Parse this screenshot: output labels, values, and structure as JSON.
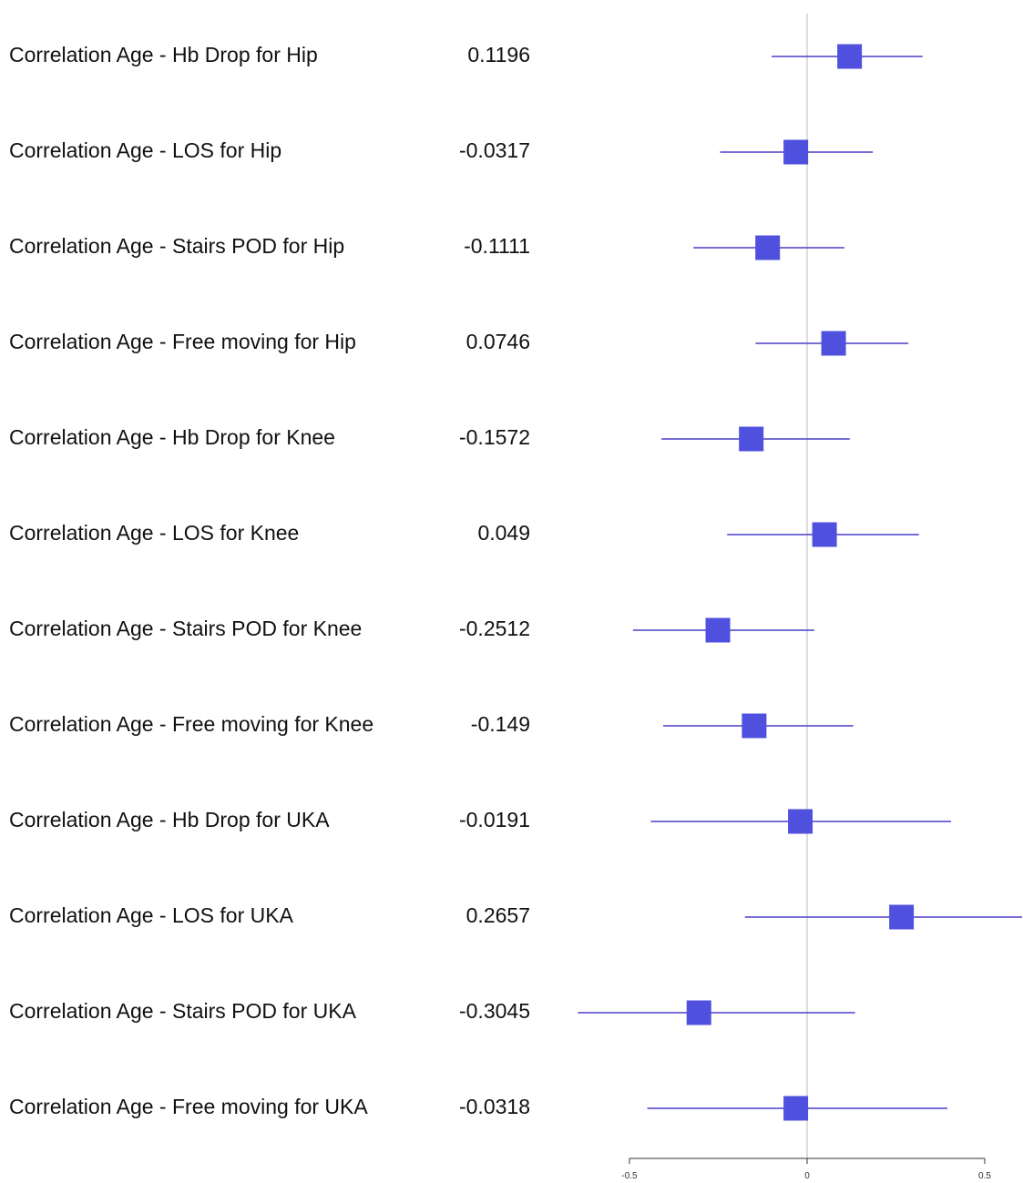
{
  "chart_data": {
    "type": "forest",
    "title": "",
    "xlabel": "",
    "ylabel": "",
    "xlim": [
      -0.5,
      0.5
    ],
    "reference_line": 0,
    "x_ticks": [
      -0.5,
      0,
      0.5
    ],
    "x_tick_labels": [
      "-0.5",
      "0",
      "0.5"
    ],
    "marker_color": "#5050DF",
    "ci_color": "#4A3FC8",
    "reference_color": "#C8C8C8",
    "rows": [
      {
        "label": "Correlation Age - Hb Drop for Hip",
        "value_text": "0.1196",
        "estimate": 0.1196,
        "ci_low": -0.1,
        "ci_high": 0.325
      },
      {
        "label": "Correlation Age - LOS for Hip",
        "value_text": "-0.0317",
        "estimate": -0.0317,
        "ci_low": -0.245,
        "ci_high": 0.185
      },
      {
        "label": "Correlation Age - Stairs POD for Hip",
        "value_text": "-0.1111",
        "estimate": -0.1111,
        "ci_low": -0.32,
        "ci_high": 0.105
      },
      {
        "label": "Correlation Age - Free moving for Hip",
        "value_text": "0.0746",
        "estimate": 0.0746,
        "ci_low": -0.145,
        "ci_high": 0.285
      },
      {
        "label": "Correlation Age - Hb Drop for Knee",
        "value_text": "-0.1572",
        "estimate": -0.1572,
        "ci_low": -0.41,
        "ci_high": 0.12
      },
      {
        "label": "Correlation Age - LOS for Knee",
        "value_text": "0.049",
        "estimate": 0.049,
        "ci_low": -0.225,
        "ci_high": 0.315
      },
      {
        "label": "Correlation Age - Stairs POD for Knee",
        "value_text": "-0.2512",
        "estimate": -0.2512,
        "ci_low": -0.49,
        "ci_high": 0.02
      },
      {
        "label": "Correlation Age - Free moving for Knee",
        "value_text": "-0.149",
        "estimate": -0.149,
        "ci_low": -0.405,
        "ci_high": 0.13
      },
      {
        "label": "Correlation Age - Hb Drop for UKA",
        "value_text": "-0.0191",
        "estimate": -0.0191,
        "ci_low": -0.44,
        "ci_high": 0.405
      },
      {
        "label": "Correlation Age - LOS for UKA",
        "value_text": "0.2657",
        "estimate": 0.2657,
        "ci_low": -0.175,
        "ci_high": 0.605
      },
      {
        "label": "Correlation Age - Stairs POD for UKA",
        "value_text": "-0.3045",
        "estimate": -0.3045,
        "ci_low": -0.645,
        "ci_high": 0.135
      },
      {
        "label": "Correlation Age - Free moving for UKA",
        "value_text": "-0.0318",
        "estimate": -0.0318,
        "ci_low": -0.45,
        "ci_high": 0.395
      }
    ]
  }
}
